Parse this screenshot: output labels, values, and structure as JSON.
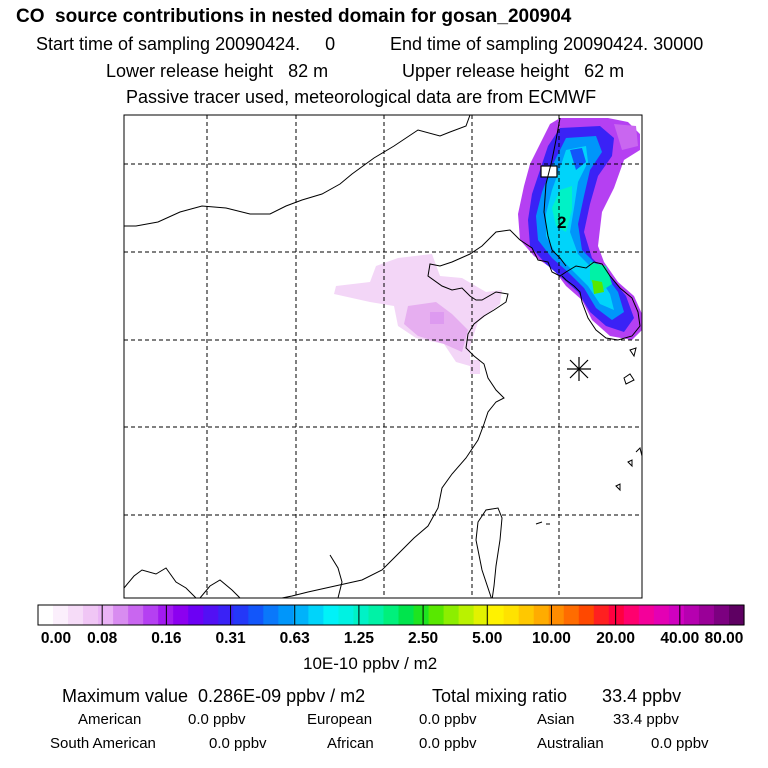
{
  "header": {
    "title": "CO  source contributions in nested domain for gosan_200904",
    "start_label": "Start time of sampling 20090424.     0",
    "end_label": "End time of sampling 20090424. 30000",
    "lower_label": "Lower release height   82 m",
    "upper_label": "Upper release height   62 m",
    "tracer_line": "Passive tracer used, meteorological data are from ECMWF"
  },
  "map": {
    "point_label": "2",
    "station_marker": "asterisk-icon"
  },
  "colorbar": {
    "units": "10E-10 ppbv / m2",
    "ticks": [
      "0.00",
      "0.08",
      "0.16",
      "0.31",
      "0.63",
      "1.25",
      "2.50",
      "5.00",
      "10.00",
      "20.00",
      "40.00",
      "80.00"
    ],
    "colors": [
      "#ffffff",
      "#fbeffc",
      "#f6dcf8",
      "#f0c6f5",
      "#eab3f6",
      "#d88cf0",
      "#c966f0",
      "#b540f2",
      "#a21af0",
      "#8c00f0",
      "#6c00f4",
      "#5210f4",
      "#3a22f6",
      "#2438f8",
      "#1256fa",
      "#0a78fa",
      "#0096fa",
      "#00b2fa",
      "#00d4fa",
      "#00f2f8",
      "#00f2e2",
      "#00f2c6",
      "#00f2a6",
      "#00f07c",
      "#00e44c",
      "#1ee420",
      "#58e800",
      "#8cee00",
      "#baf200",
      "#e2f200",
      "#fff200",
      "#ffe200",
      "#ffc800",
      "#ffac00",
      "#ff8c00",
      "#ff6c00",
      "#ff4800",
      "#ff2020",
      "#ff0040",
      "#ff006e",
      "#f4009a",
      "#e400b4",
      "#d000c0",
      "#b600b0",
      "#9a0098",
      "#7c0080",
      "#5e0062"
    ]
  },
  "summary": {
    "max_value": "Maximum value  0.286E-09 ppbv / m2",
    "total_mixing": "Total mixing ratio       33.4 ppbv",
    "rows": [
      [
        {
          "name": "American",
          "value": "0.0 ppbv"
        },
        {
          "name": "European",
          "value": "0.0 ppbv"
        },
        {
          "name": "Asian",
          "value": "33.4 ppbv"
        }
      ],
      [
        {
          "name": "South American",
          "value": "0.0 ppbv"
        },
        {
          "name": "African",
          "value": "0.0 ppbv"
        },
        {
          "name": "Australian",
          "value": "0.0 ppbv"
        }
      ]
    ]
  }
}
